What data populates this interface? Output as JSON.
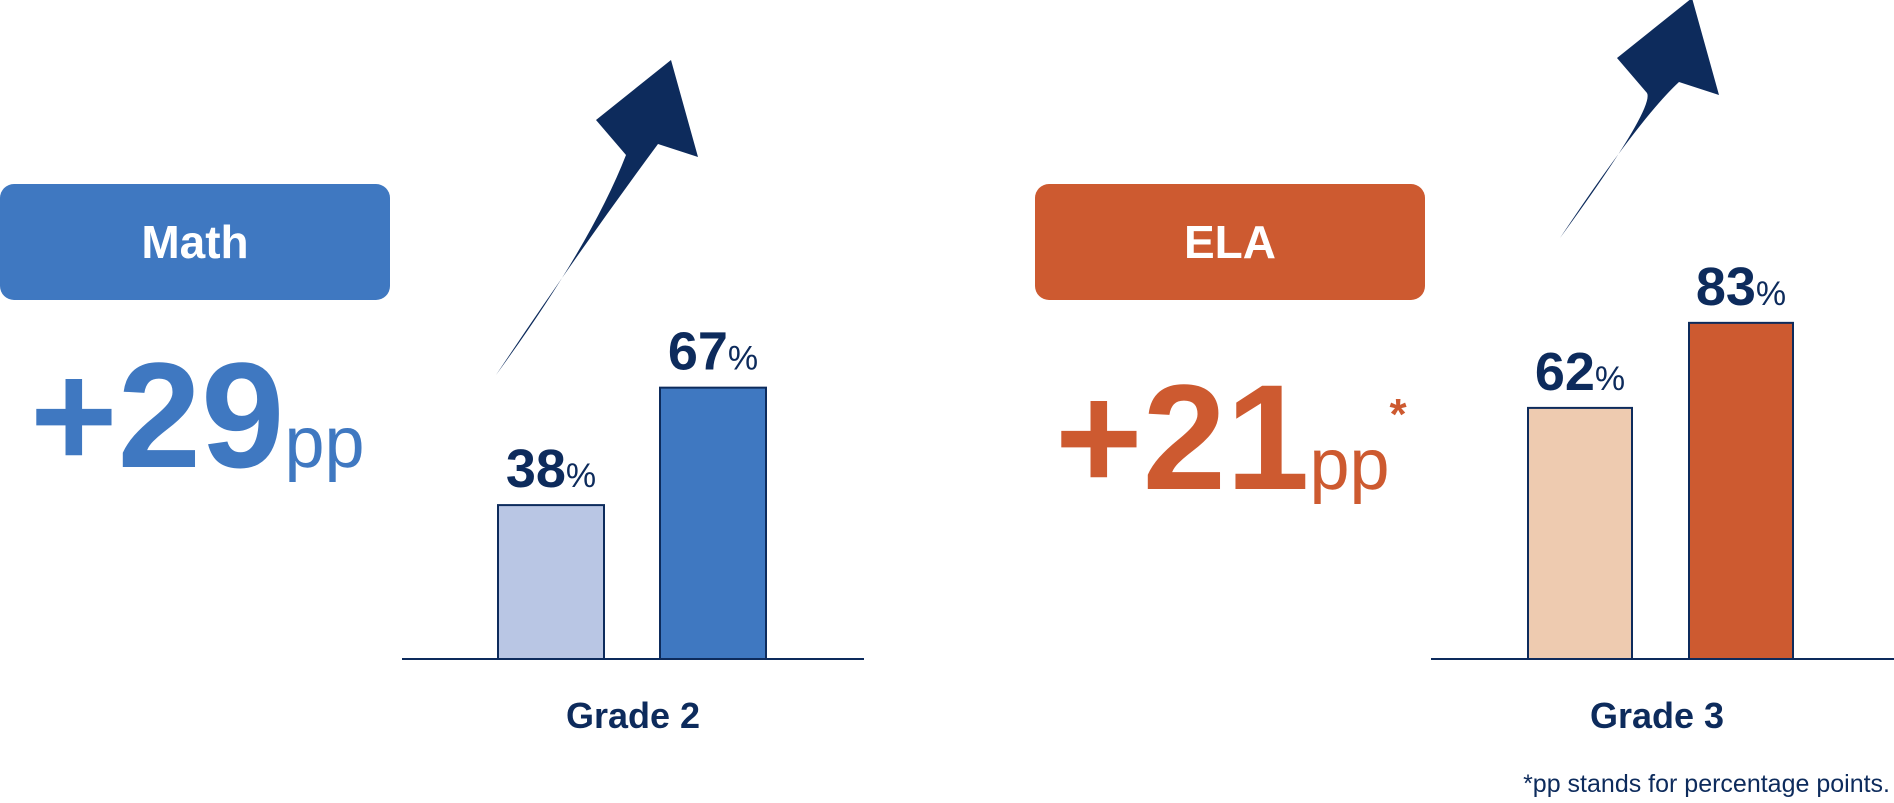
{
  "colors": {
    "navy": "#0d2b5c",
    "math_blue": "#3f78c1",
    "math_light": "#b9c6e4",
    "ela_orange": "#cd5a30",
    "ela_light": "#eecbb0"
  },
  "panels": [
    {
      "subject": "Math",
      "gain_value": "+29",
      "gain_unit": "pp",
      "gain_marker": "",
      "grade_label": "Grade 2"
    },
    {
      "subject": "ELA",
      "gain_value": "+21",
      "gain_unit": "pp",
      "gain_marker": "*",
      "grade_label": "Grade 3"
    }
  ],
  "footnote": "*pp stands for percentage points.",
  "chart_data": [
    {
      "type": "bar",
      "categories": [
        "",
        ""
      ],
      "values": [
        38,
        67
      ],
      "value_labels": [
        "38",
        "67"
      ],
      "unit": "%",
      "xlabel": "Grade 2",
      "ylim": [
        0,
        100
      ],
      "colors": [
        "#b9c6e4",
        "#3f78c1"
      ],
      "annotation": "upward trend arrow"
    },
    {
      "type": "bar",
      "categories": [
        "",
        ""
      ],
      "values": [
        62,
        83
      ],
      "value_labels": [
        "62",
        "83"
      ],
      "unit": "%",
      "xlabel": "Grade 3",
      "ylim": [
        0,
        100
      ],
      "colors": [
        "#eecbb0",
        "#cd5a30"
      ],
      "annotation": "upward trend arrow"
    }
  ]
}
